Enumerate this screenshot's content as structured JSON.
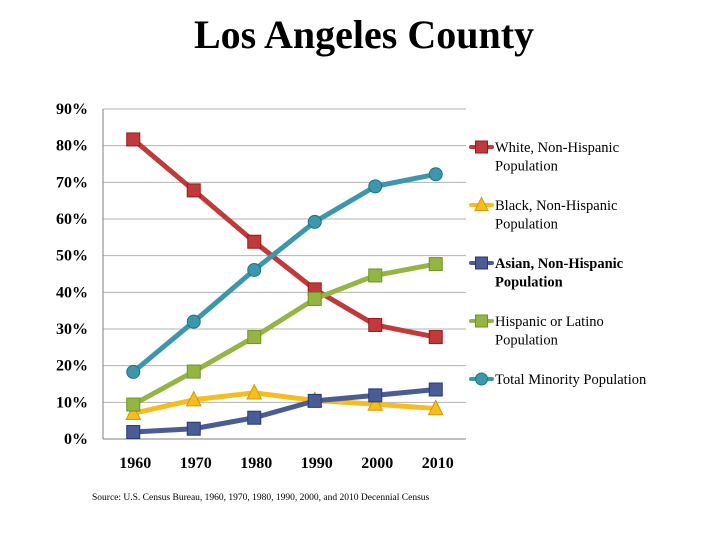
{
  "chart_data": {
    "type": "line",
    "title": "Los Angeles County",
    "categories": [
      "1960",
      "1970",
      "1980",
      "1990",
      "2000",
      "2010"
    ],
    "y_tick_labels": [
      "0%",
      "10%",
      "20%",
      "30%",
      "40%",
      "50%",
      "60%",
      "70%",
      "80%",
      "90%"
    ],
    "ylim": [
      0,
      90
    ],
    "grid": true,
    "legend_position": "right",
    "series": [
      {
        "name": "White, Non-Hispanic Population",
        "legend_lines": [
          "White, Non-Hispanic",
          "Population"
        ],
        "legend_bold": false,
        "color": "#C0393B",
        "marker": "square",
        "values": [
          81.7,
          67.8,
          53.8,
          40.8,
          31.1,
          27.8
        ]
      },
      {
        "name": "Black, Non-Hispanic Population",
        "legend_lines": [
          "Black, Non-Hispanic",
          "Population"
        ],
        "legend_bold": false,
        "color": "#F5BD1F",
        "marker": "triangle",
        "values": [
          7.0,
          10.7,
          12.6,
          10.5,
          9.5,
          8.3
        ]
      },
      {
        "name": "Asian, Non-Hispanic Population",
        "legend_lines": [
          "Asian, Non-Hispanic",
          "Population"
        ],
        "legend_bold": true,
        "color": "#4A5C95",
        "marker": "square",
        "values": [
          1.9,
          2.8,
          5.8,
          10.4,
          11.9,
          13.5
        ]
      },
      {
        "name": "Hispanic or Latino Population",
        "legend_lines": [
          "Hispanic or Latino",
          "Population"
        ],
        "legend_bold": false,
        "color": "#94B544",
        "marker": "square",
        "values": [
          9.4,
          18.4,
          27.8,
          38.2,
          44.6,
          47.7
        ]
      },
      {
        "name": "Total Minority Population",
        "legend_lines": [
          "Total Minority Population"
        ],
        "legend_bold": false,
        "color": "#3D97AC",
        "marker": "circle",
        "values": [
          18.3,
          32.0,
          46.1,
          59.2,
          68.9,
          72.2
        ]
      }
    ],
    "source": "Source: U.S. Census Bureau, 1960, 1970, 1980, 1990, 2000, and 2010 Decennial Census"
  }
}
